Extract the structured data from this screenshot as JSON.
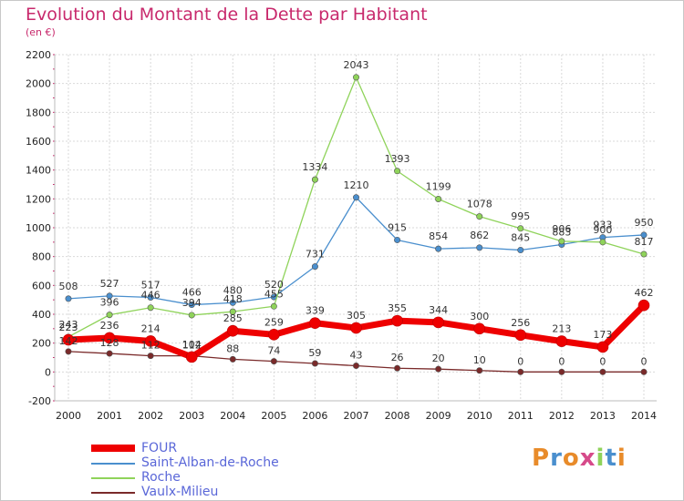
{
  "title": "Evolution du Montant de la Dette par Habitant",
  "subtitle": "(en €)",
  "brand": "Proxiti",
  "colors": {
    "title": "#c8296c",
    "legend_text": "#5a67d8",
    "grid": "#d9d9d9"
  },
  "chart_data": {
    "type": "line",
    "title": "Evolution du Montant de la Dette par Habitant",
    "subtitle": "(en €)",
    "xlabel": "",
    "ylabel": "",
    "x": [
      2000,
      2001,
      2002,
      2003,
      2004,
      2005,
      2006,
      2007,
      2008,
      2009,
      2010,
      2011,
      2012,
      2013,
      2014
    ],
    "ylim": [
      -200,
      2200
    ],
    "yticks": [
      -200,
      0,
      200,
      400,
      600,
      800,
      1000,
      1200,
      1400,
      1600,
      1800,
      2000,
      2200
    ],
    "grid": true,
    "legend": "bottom-left",
    "series": [
      {
        "name": "FOUR",
        "color": "#ee0000",
        "values": [
          223,
          236,
          214,
          104,
          285,
          259,
          339,
          305,
          355,
          344,
          300,
          256,
          213,
          173,
          462
        ]
      },
      {
        "name": "Saint-Alban-de-Roche",
        "color": "#4a8fce",
        "values": [
          508,
          527,
          517,
          466,
          480,
          520,
          731,
          1210,
          915,
          854,
          862,
          845,
          883,
          933,
          950
        ]
      },
      {
        "name": "Roche",
        "color": "#8fd35a",
        "values": [
          243,
          396,
          446,
          394,
          418,
          455,
          1334,
          2043,
          1393,
          1199,
          1078,
          995,
          906,
          900,
          817
        ]
      },
      {
        "name": "Vaulx-Milieu",
        "color": "#7a2a2a",
        "values": [
          142,
          128,
          112,
          112,
          88,
          74,
          59,
          43,
          26,
          20,
          10,
          0,
          0,
          0,
          0
        ]
      }
    ]
  }
}
